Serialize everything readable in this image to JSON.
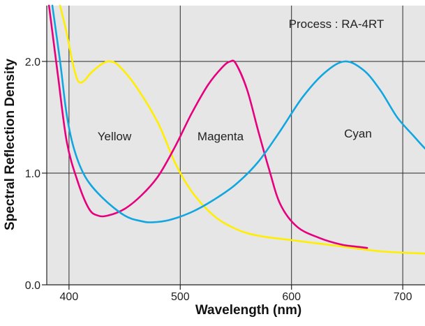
{
  "chart_data": {
    "type": "line",
    "title": "",
    "xlabel": "Wavelength (nm)",
    "ylabel": "Spectral Reflection Density",
    "xlim": [
      380,
      720
    ],
    "ylim": [
      0.0,
      2.5
    ],
    "x_ticks": [
      400,
      500,
      600,
      700
    ],
    "x_tick_labels": [
      "400",
      "500",
      "600",
      "700"
    ],
    "y_ticks": [
      0.0,
      1.0,
      2.0
    ],
    "y_tick_labels": [
      "0.0",
      "1.0",
      "2.0"
    ],
    "grid": true,
    "annotations": {
      "process": "Process : RA-4RT",
      "yellow": "Yellow",
      "magenta": "Magenta",
      "cyan": "Cyan"
    },
    "series": [
      {
        "name": "Yellow",
        "color": "#ffee00",
        "points": [
          [
            392,
            2.5
          ],
          [
            398,
            2.25
          ],
          [
            403,
            2.0
          ],
          [
            407,
            1.85
          ],
          [
            410,
            1.81
          ],
          [
            414,
            1.83
          ],
          [
            420,
            1.9
          ],
          [
            430,
            1.98
          ],
          [
            437,
            2.0
          ],
          [
            445,
            1.96
          ],
          [
            460,
            1.78
          ],
          [
            480,
            1.45
          ],
          [
            495,
            1.1
          ],
          [
            510,
            0.84
          ],
          [
            530,
            0.62
          ],
          [
            550,
            0.5
          ],
          [
            570,
            0.44
          ],
          [
            600,
            0.4
          ],
          [
            640,
            0.35
          ],
          [
            680,
            0.3
          ],
          [
            720,
            0.28
          ]
        ]
      },
      {
        "name": "Magenta",
        "color": "#e6007e",
        "points": [
          [
            382,
            2.5
          ],
          [
            390,
            1.88
          ],
          [
            398,
            1.28
          ],
          [
            408,
            0.92
          ],
          [
            418,
            0.68
          ],
          [
            426,
            0.62
          ],
          [
            435,
            0.62
          ],
          [
            450,
            0.68
          ],
          [
            465,
            0.8
          ],
          [
            480,
            0.97
          ],
          [
            495,
            1.23
          ],
          [
            510,
            1.53
          ],
          [
            525,
            1.79
          ],
          [
            538,
            1.95
          ],
          [
            545,
            2.0
          ],
          [
            550,
            1.98
          ],
          [
            560,
            1.75
          ],
          [
            570,
            1.38
          ],
          [
            580,
            1.03
          ],
          [
            590,
            0.72
          ],
          [
            605,
            0.52
          ],
          [
            625,
            0.42
          ],
          [
            645,
            0.36
          ],
          [
            660,
            0.34
          ],
          [
            668,
            0.33
          ]
        ]
      },
      {
        "name": "Cyan",
        "color": "#12a6e0",
        "points": [
          [
            385,
            2.5
          ],
          [
            392,
            2.0
          ],
          [
            398,
            1.52
          ],
          [
            405,
            1.2
          ],
          [
            415,
            0.96
          ],
          [
            430,
            0.78
          ],
          [
            450,
            0.62
          ],
          [
            465,
            0.57
          ],
          [
            475,
            0.56
          ],
          [
            490,
            0.58
          ],
          [
            510,
            0.65
          ],
          [
            530,
            0.76
          ],
          [
            550,
            0.9
          ],
          [
            570,
            1.1
          ],
          [
            590,
            1.38
          ],
          [
            610,
            1.68
          ],
          [
            630,
            1.9
          ],
          [
            648,
            2.0
          ],
          [
            665,
            1.92
          ],
          [
            680,
            1.74
          ],
          [
            695,
            1.5
          ],
          [
            710,
            1.33
          ],
          [
            720,
            1.22
          ]
        ]
      }
    ]
  }
}
